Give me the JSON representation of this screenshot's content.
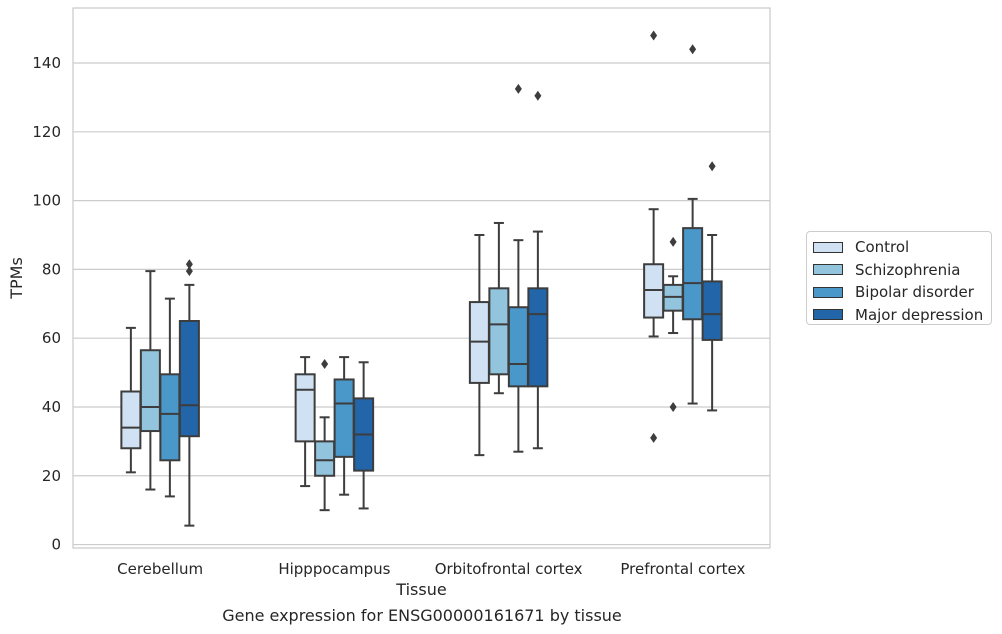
{
  "chart_data": {
    "type": "boxplot",
    "title": "",
    "caption": "Gene expression for ENSG00000161671 by tissue",
    "xlabel": "Tissue",
    "ylabel": "TPMs",
    "ylim": [
      -1,
      156
    ],
    "yticks": [
      0,
      20,
      40,
      60,
      80,
      100,
      120,
      140
    ],
    "grid": "horizontal",
    "legend_position": "right",
    "categories": [
      "Cerebellum",
      "Hipppocampus",
      "Orbitofrontal cortex",
      "Prefrontal cortex"
    ],
    "series": [
      {
        "name": "Control",
        "color": "#cfe1f2",
        "boxes": [
          {
            "whislo": 21,
            "q1": 28,
            "med": 34,
            "q3": 44.5,
            "whishi": 63,
            "fliers": []
          },
          {
            "whislo": 17,
            "q1": 30,
            "med": 45,
            "q3": 49.5,
            "whishi": 54.5,
            "fliers": []
          },
          {
            "whislo": 26,
            "q1": 47,
            "med": 59,
            "q3": 70.5,
            "whishi": 90,
            "fliers": []
          },
          {
            "whislo": 60.5,
            "q1": 66,
            "med": 74,
            "q3": 81.5,
            "whishi": 97.5,
            "fliers": [
              148,
              31
            ]
          }
        ]
      },
      {
        "name": "Schizophrenia",
        "color": "#93c4de",
        "boxes": [
          {
            "whislo": 16,
            "q1": 33,
            "med": 40,
            "q3": 56.5,
            "whishi": 79.5,
            "fliers": []
          },
          {
            "whislo": 10,
            "q1": 20,
            "med": 24.5,
            "q3": 30,
            "whishi": 37,
            "fliers": [
              52.5
            ]
          },
          {
            "whislo": 44,
            "q1": 49.5,
            "med": 64,
            "q3": 74.5,
            "whishi": 93.5,
            "fliers": []
          },
          {
            "whislo": 61.5,
            "q1": 68,
            "med": 72,
            "q3": 75.5,
            "whishi": 78,
            "fliers": [
              88,
              40
            ]
          }
        ]
      },
      {
        "name": "Bipolar disorder",
        "color": "#4a98c9",
        "boxes": [
          {
            "whislo": 14,
            "q1": 24.5,
            "med": 38,
            "q3": 49.5,
            "whishi": 71.5,
            "fliers": []
          },
          {
            "whislo": 14.5,
            "q1": 25.5,
            "med": 41,
            "q3": 48,
            "whishi": 54.5,
            "fliers": []
          },
          {
            "whislo": 27,
            "q1": 46,
            "med": 52.5,
            "q3": 69,
            "whishi": 88.5,
            "fliers": [
              132.5
            ]
          },
          {
            "whislo": 41,
            "q1": 65.5,
            "med": 76,
            "q3": 92,
            "whishi": 100.5,
            "fliers": [
              144
            ]
          }
        ]
      },
      {
        "name": "Major depression",
        "color": "#2265a9",
        "boxes": [
          {
            "whislo": 5.5,
            "q1": 31.5,
            "med": 40.5,
            "q3": 65,
            "whishi": 75.5,
            "fliers": [
              81.5,
              79.5
            ]
          },
          {
            "whislo": 10.5,
            "q1": 21.5,
            "med": 32,
            "q3": 42.5,
            "whishi": 53,
            "fliers": []
          },
          {
            "whislo": 28,
            "q1": 46,
            "med": 67,
            "q3": 74.5,
            "whishi": 91,
            "fliers": [
              130.5
            ]
          },
          {
            "whislo": 39,
            "q1": 59.5,
            "med": 67,
            "q3": 76.5,
            "whishi": 90,
            "fliers": [
              110
            ]
          }
        ]
      }
    ]
  }
}
